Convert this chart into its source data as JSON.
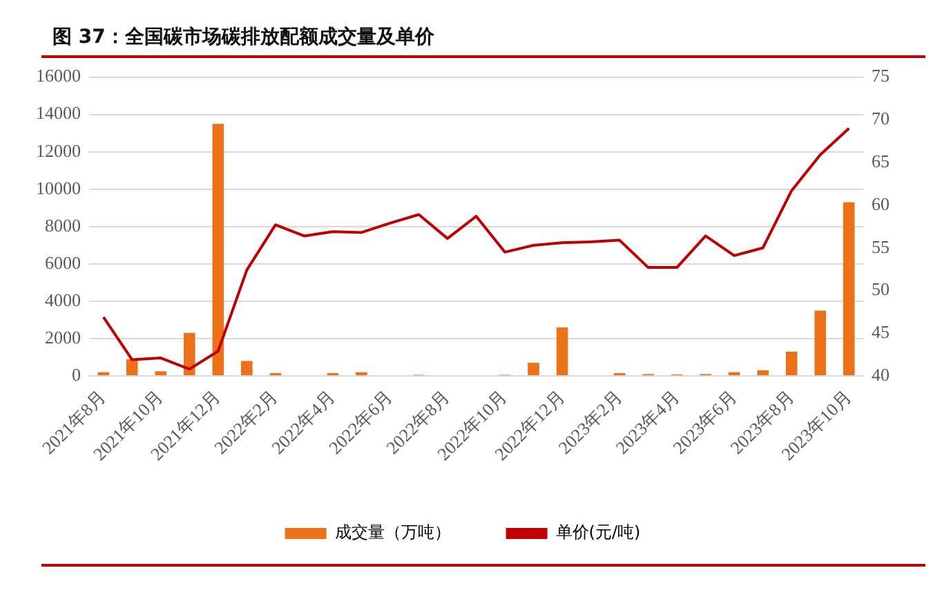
{
  "chart_data": {
    "type": "bar",
    "title": "图 37：全国碳市场碳排放配额成交量及单价",
    "categories": [
      "2021年8月",
      null,
      "2021年10月",
      null,
      "2021年12月",
      null,
      "2022年2月",
      null,
      "2022年4月",
      null,
      "2022年6月",
      null,
      "2022年8月",
      null,
      "2022年10月",
      null,
      "2022年12月",
      null,
      "2023年2月",
      null,
      "2023年4月",
      null,
      "2023年6月",
      null,
      "2023年8月",
      null,
      "2023年10月"
    ],
    "series": [
      {
        "name": "成交量（万吨）",
        "color": "#ed7119",
        "values": [
          200,
          900,
          250,
          2300,
          13500,
          800,
          150,
          null,
          150,
          200,
          null,
          60,
          null,
          null,
          60,
          700,
          2600,
          null,
          150,
          100,
          80,
          100,
          200,
          300,
          1300,
          3500,
          9300
        ]
      },
      {
        "name": "单价(元/吨)",
        "type": "line",
        "axis": "y2",
        "color": "#c00000",
        "values": [
          46.9,
          41.9,
          42.1,
          40.8,
          42.9,
          52.4,
          57.7,
          56.4,
          56.9,
          56.8,
          57.9,
          58.9,
          56.1,
          58.7,
          54.5,
          55.3,
          55.6,
          55.7,
          55.9,
          52.7,
          52.7,
          56.4,
          54.1,
          55.0,
          61.7,
          65.9,
          69.0
        ]
      }
    ],
    "ylim": [
      0,
      16000
    ],
    "yticks": [
      0,
      2000,
      4000,
      6000,
      8000,
      10000,
      12000,
      14000,
      16000
    ],
    "y2lim": [
      40,
      75
    ],
    "y2ticks": [
      40,
      45,
      50,
      55,
      60,
      65,
      70,
      75
    ],
    "grid": "y",
    "legend": "bottom",
    "marker": "none",
    "line_style": "solid"
  }
}
